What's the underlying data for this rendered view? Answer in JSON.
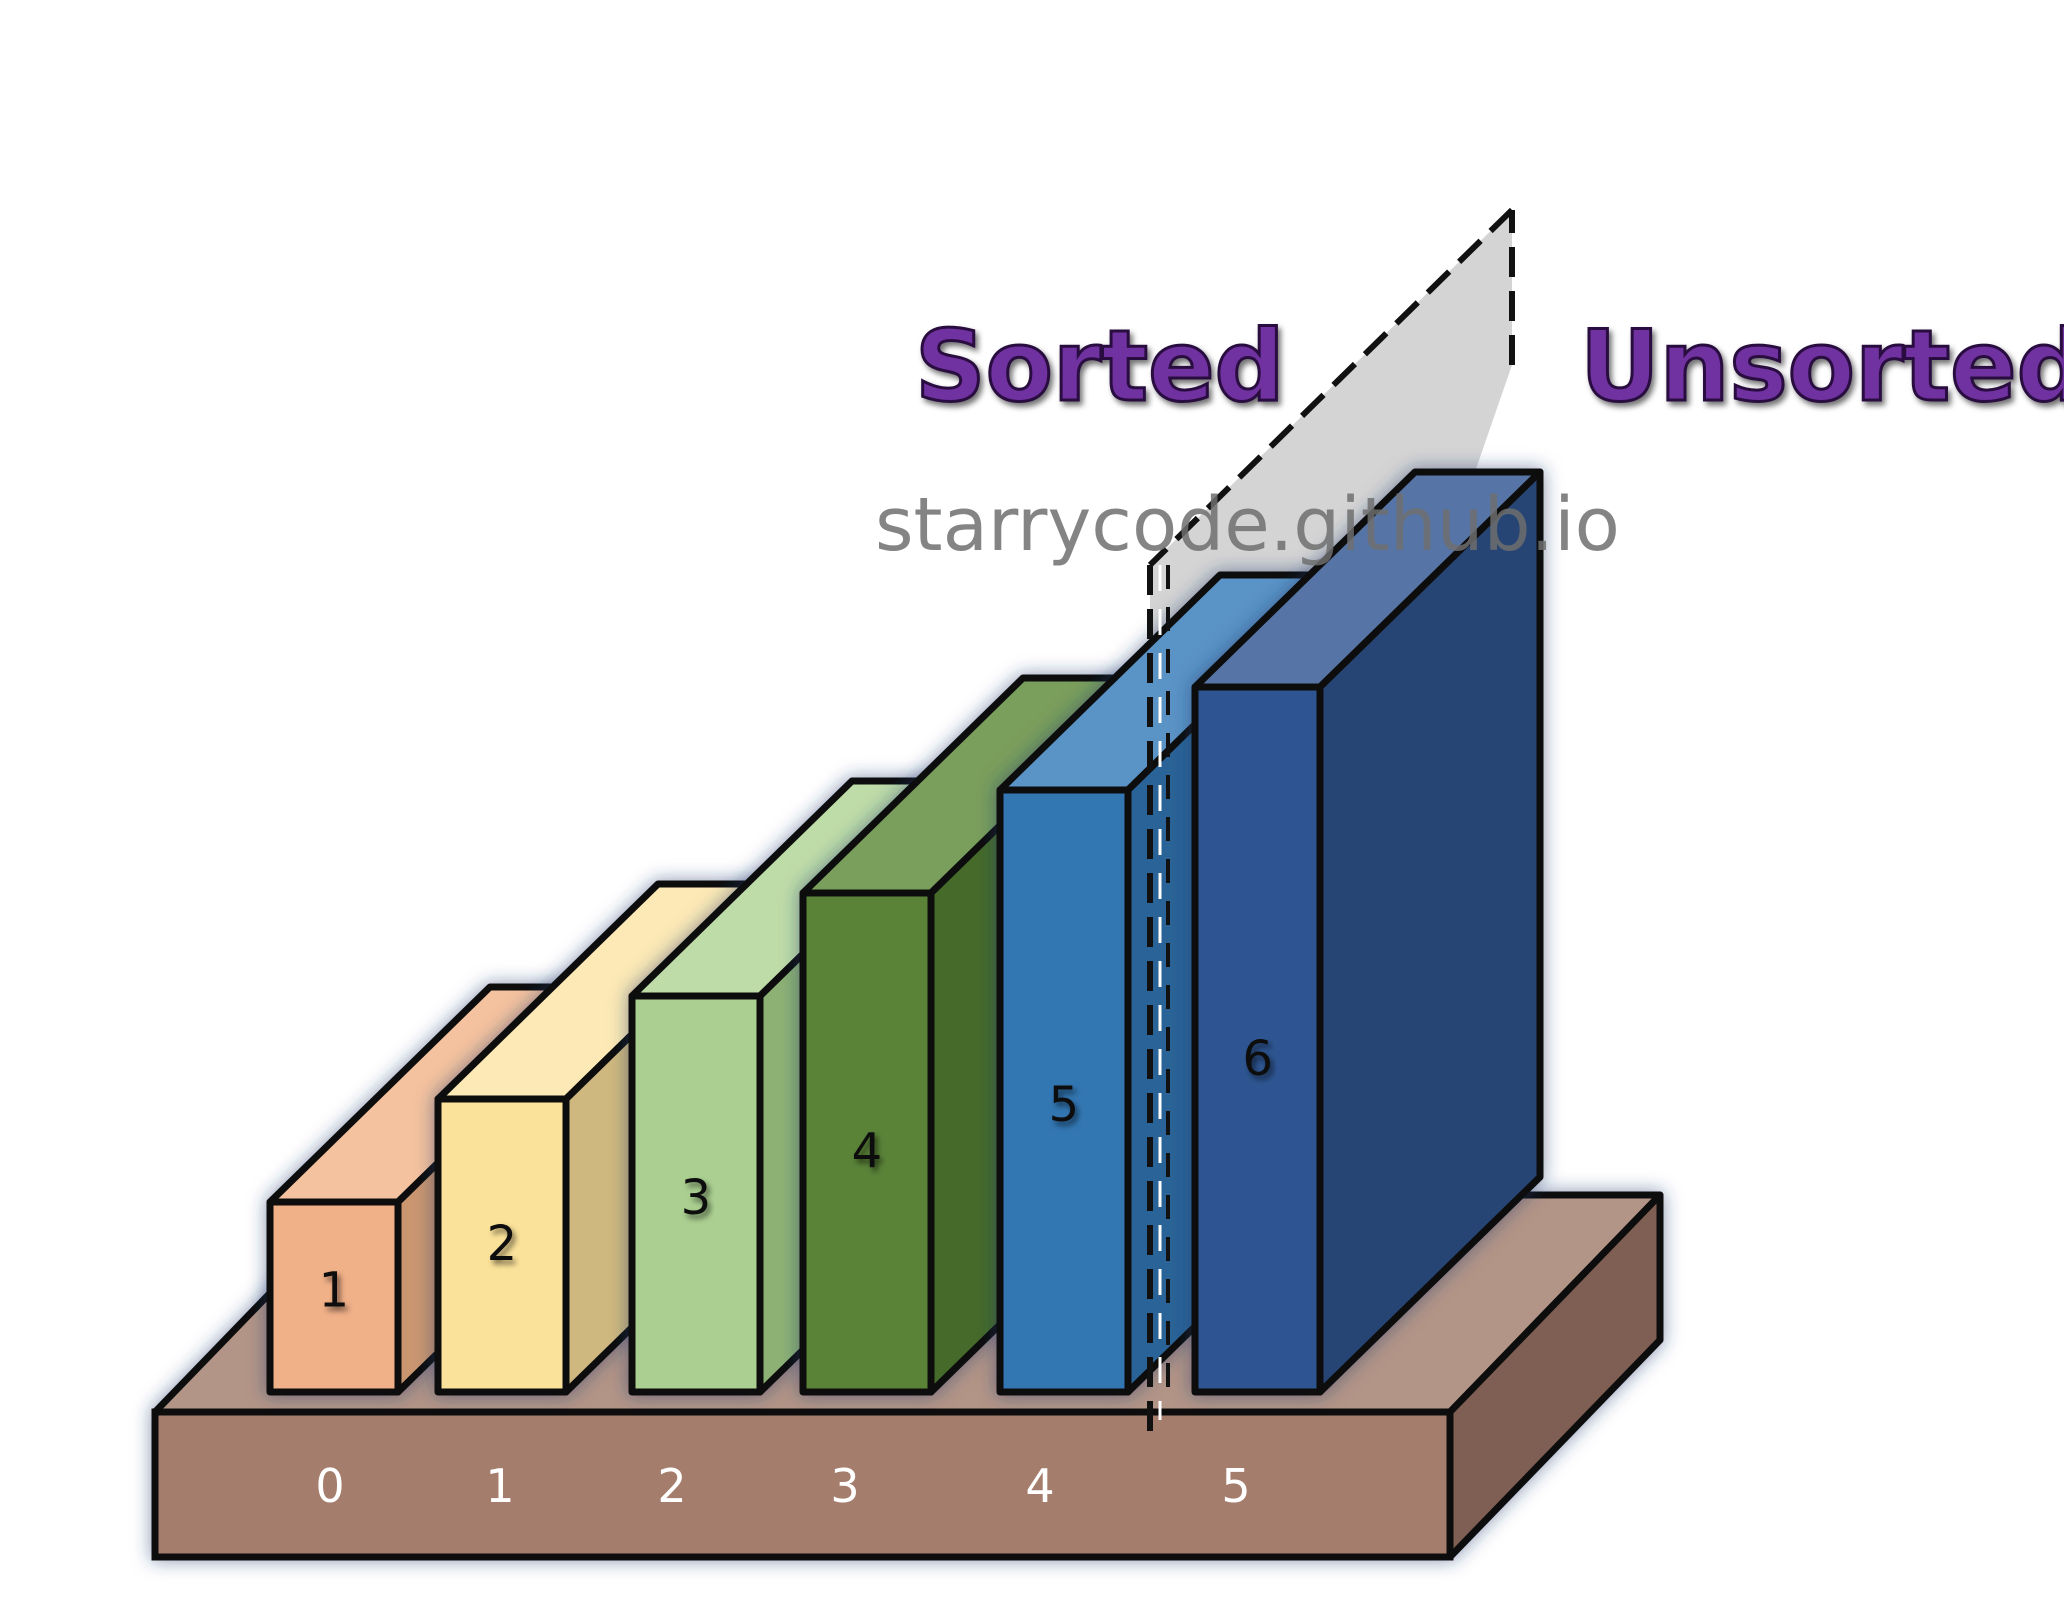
{
  "diagram": {
    "sorted_label": "Sorted",
    "unsorted_label": "Unsorted",
    "watermark": "starrycode.github.io",
    "bars": [
      {
        "value": "1",
        "index": "0",
        "colors": {
          "front": "#F0B088",
          "top": "#F4C29E",
          "side": "#C9966F"
        }
      },
      {
        "value": "2",
        "index": "1",
        "colors": {
          "front": "#FBE29A",
          "top": "#FCE9B5",
          "side": "#CFB87F"
        }
      },
      {
        "value": "3",
        "index": "2",
        "colors": {
          "front": "#AACF90",
          "top": "#BEDCA8",
          "side": "#8DB174"
        }
      },
      {
        "value": "4",
        "index": "3",
        "colors": {
          "front": "#5A8338",
          "top": "#7A9E5C",
          "side": "#456A2B"
        }
      },
      {
        "value": "5",
        "index": "4",
        "colors": {
          "front": "#3276B2",
          "top": "#5A93C6",
          "side": "#2A6397"
        }
      },
      {
        "value": "6",
        "index": "5",
        "colors": {
          "front": "#2E5591",
          "top": "#5775A6",
          "side": "#264574"
        }
      }
    ],
    "colors": {
      "heading": "#7030A0",
      "base_front": "#A57D6C",
      "base_top": "#B39587",
      "base_side": "#7F5F52",
      "divider_fill": "#CCCCCC",
      "watermark": "#6E6E6E"
    }
  }
}
